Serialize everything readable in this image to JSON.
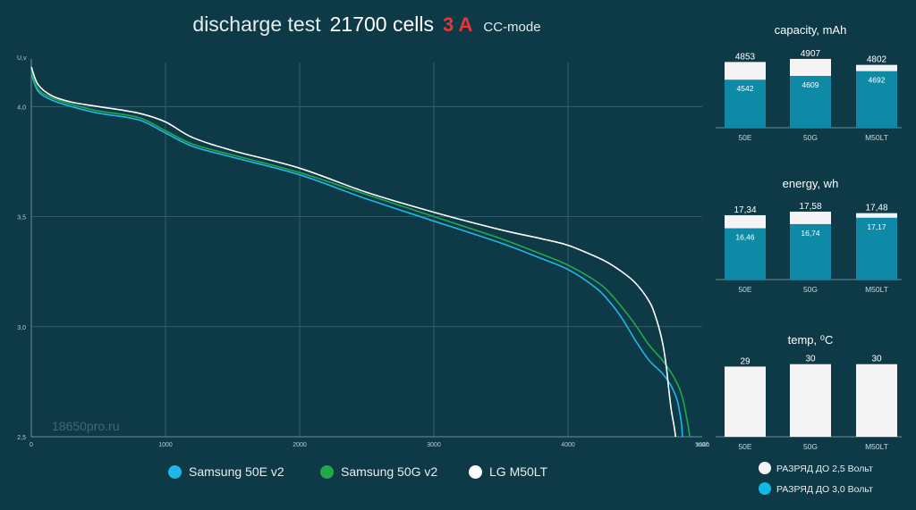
{
  "title": {
    "part1": "discharge test",
    "part2": "21700 cells",
    "part3": "3 A",
    "part4": "CC-mode"
  },
  "watermark": "18650pro.ru",
  "colors": {
    "background": "#0e3a47",
    "grid": "#3d6672",
    "samsung50e": "#1fb6e8",
    "samsung50g": "#22a84a",
    "lgm50lt": "#ffffff",
    "bar_total": "#f4f4f4",
    "bar_part": "#0e8aa6",
    "title_accent": "#e8333a"
  },
  "legend": [
    {
      "label": "Samsung 50E v2",
      "color": "#1fb6e8"
    },
    {
      "label": "Samsung 50G v2",
      "color": "#22a84a"
    },
    {
      "label": "LG M50LT",
      "color": "#ffffff"
    }
  ],
  "right_legend": [
    {
      "label": "РАЗРЯД ДО 2,5 Вольт",
      "color": "#f4f4f4"
    },
    {
      "label": "РАЗРЯД ДО 3,0 Вольт",
      "color": "#14b8e6"
    }
  ],
  "chart_data": [
    {
      "type": "line",
      "xlabel": "mAh",
      "ylabel": "U,v",
      "xlim": [
        0,
        5000
      ],
      "ylim": [
        2.5,
        4.2
      ],
      "x_ticks": [
        "0",
        "1000",
        "2000",
        "3000",
        "4000",
        "5000"
      ],
      "y_ticks": [
        "2,5",
        "3,0",
        "3,5",
        "4,0"
      ],
      "grid": true,
      "series": [
        {
          "name": "Samsung 50E v2",
          "x": [
            0,
            50,
            150,
            300,
            500,
            800,
            1000,
            1200,
            1500,
            2000,
            2500,
            3000,
            3500,
            3800,
            4000,
            4200,
            4300,
            4400,
            4500,
            4600,
            4700,
            4760,
            4800,
            4820,
            4835,
            4845,
            4853
          ],
          "y": [
            4.15,
            4.07,
            4.03,
            4.0,
            3.97,
            3.94,
            3.88,
            3.82,
            3.77,
            3.69,
            3.58,
            3.48,
            3.38,
            3.31,
            3.26,
            3.18,
            3.12,
            3.04,
            2.94,
            2.85,
            2.79,
            2.74,
            2.69,
            2.65,
            2.6,
            2.56,
            2.5
          ]
        },
        {
          "name": "Samsung 50G v2",
          "x": [
            0,
            50,
            150,
            300,
            500,
            800,
            1000,
            1200,
            1500,
            2000,
            2500,
            3000,
            3500,
            3800,
            4000,
            4200,
            4300,
            4400,
            4500,
            4600,
            4700,
            4780,
            4830,
            4860,
            4880,
            4895,
            4907
          ],
          "y": [
            4.16,
            4.08,
            4.04,
            4.01,
            3.98,
            3.95,
            3.89,
            3.83,
            3.78,
            3.7,
            3.6,
            3.5,
            3.4,
            3.33,
            3.28,
            3.21,
            3.16,
            3.09,
            3.01,
            2.92,
            2.85,
            2.78,
            2.72,
            2.66,
            2.6,
            2.55,
            2.5
          ]
        },
        {
          "name": "LG M50LT",
          "x": [
            0,
            50,
            150,
            300,
            500,
            800,
            1000,
            1200,
            1500,
            2000,
            2500,
            3000,
            3500,
            3800,
            4000,
            4200,
            4300,
            4400,
            4500,
            4600,
            4650,
            4700,
            4730,
            4750,
            4770,
            4790,
            4802
          ],
          "y": [
            4.18,
            4.1,
            4.05,
            4.02,
            4.0,
            3.97,
            3.93,
            3.86,
            3.8,
            3.72,
            3.61,
            3.52,
            3.44,
            3.4,
            3.37,
            3.32,
            3.29,
            3.25,
            3.2,
            3.12,
            3.05,
            2.94,
            2.83,
            2.72,
            2.62,
            2.55,
            2.5
          ]
        }
      ]
    },
    {
      "type": "bar",
      "title": "capacity, mAh",
      "categories": [
        "50E",
        "50G",
        "M50LT"
      ],
      "ylim": [
        0,
        5000
      ],
      "series": [
        {
          "name": "РАЗРЯД ДО 2,5 Вольт",
          "values": [
            4853,
            4907,
            4802
          ],
          "labels": [
            "4853",
            "4907",
            "4802"
          ]
        },
        {
          "name": "РАЗРЯД ДО 3,0 Вольт",
          "values": [
            4542,
            4609,
            4692
          ],
          "labels": [
            "4542",
            "4609",
            "4692"
          ]
        }
      ]
    },
    {
      "type": "bar",
      "title": "energy, wh",
      "categories": [
        "50E",
        "50G",
        "M50LT"
      ],
      "ylim": [
        0,
        18
      ],
      "series": [
        {
          "name": "РАЗРЯД ДО 2,5 Вольт",
          "values": [
            17.34,
            17.58,
            17.48
          ],
          "labels": [
            "17,34",
            "17,58",
            "17,48"
          ]
        },
        {
          "name": "РАЗРЯД ДО 3,0 Вольт",
          "values": [
            16.46,
            16.74,
            17.17
          ],
          "labels": [
            "16,46",
            "16,74",
            "17,17"
          ]
        }
      ]
    },
    {
      "type": "bar",
      "title": "temp, ⁰C",
      "categories": [
        "50E",
        "50G",
        "M50LT"
      ],
      "ylim": [
        0,
        31
      ],
      "series": [
        {
          "name": "РАЗРЯД ДО 2,5 Вольт",
          "values": [
            29,
            30,
            30
          ],
          "labels": [
            "29",
            "30",
            "30"
          ]
        }
      ]
    }
  ]
}
